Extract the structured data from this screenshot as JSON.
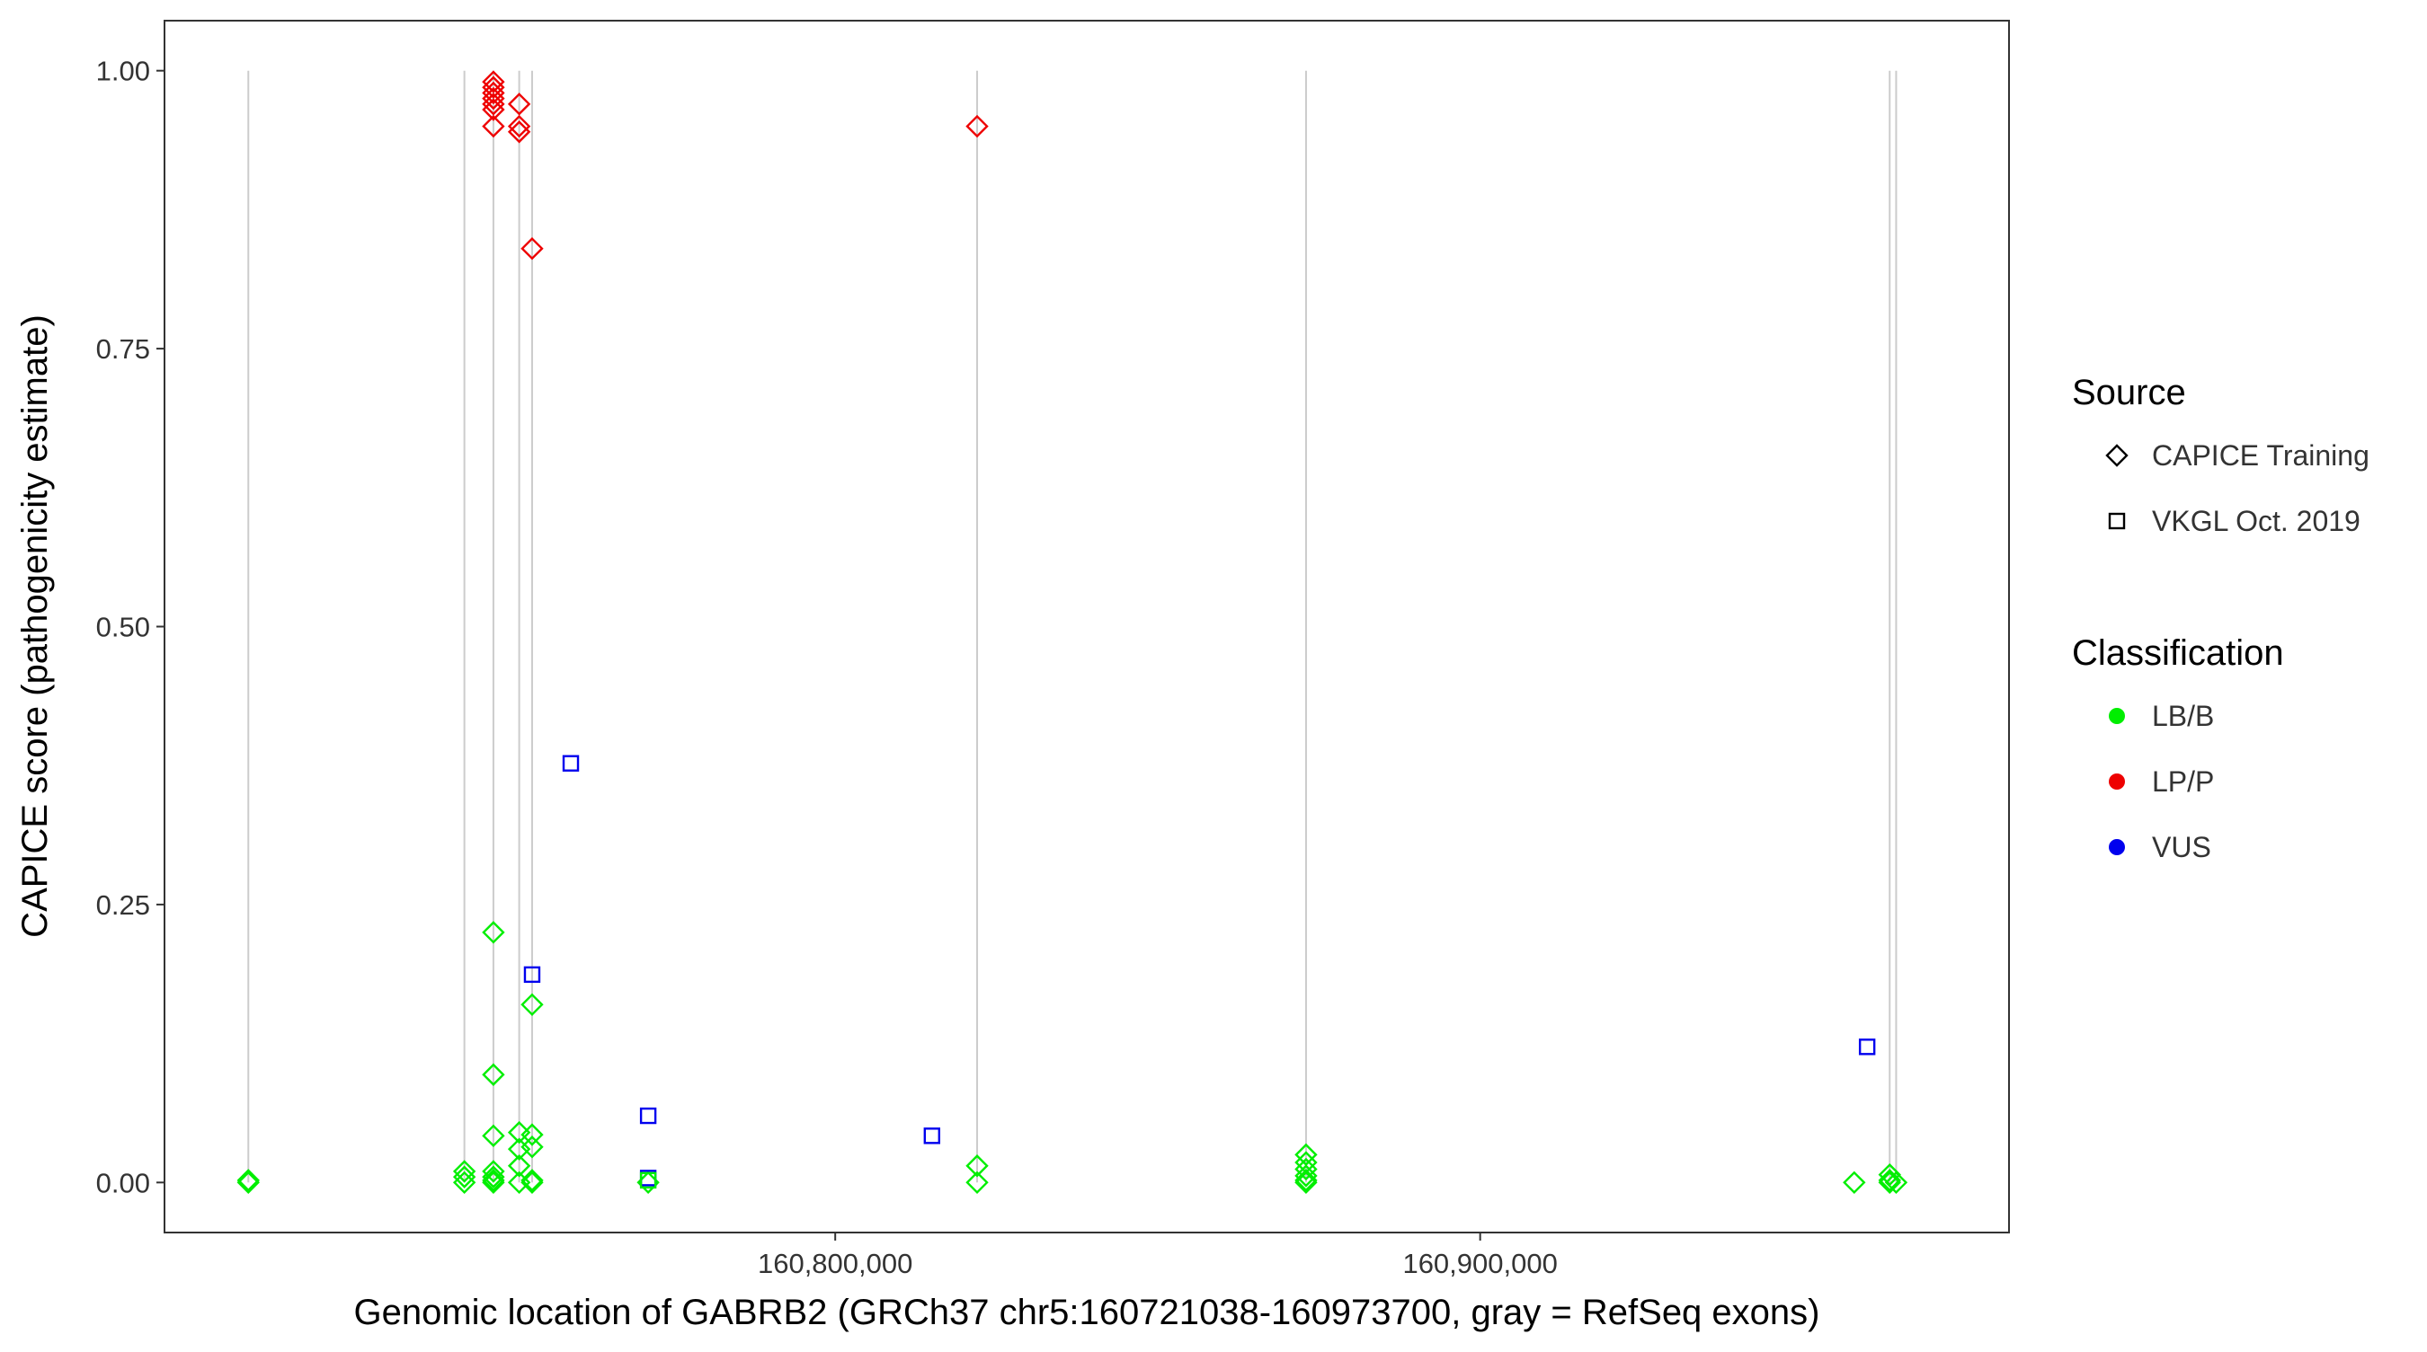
{
  "chart_data": {
    "type": "scatter",
    "xlabel": "Genomic location of GABRB2 (GRCh37 chr5:160721038-160973700, gray = RefSeq exons)",
    "ylabel": "CAPICE score (pathogenicity estimate)",
    "xlim": [
      160696000,
      160982000
    ],
    "ylim": [
      -0.045,
      1.045
    ],
    "x_ticks": [
      160800000,
      160900000
    ],
    "x_tick_labels": [
      "160,800,000",
      "160,900,000"
    ],
    "y_ticks": [
      0.0,
      0.25,
      0.5,
      0.75,
      1.0
    ],
    "y_tick_labels": [
      "0.00",
      "0.25",
      "0.50",
      "0.75",
      "1.00"
    ],
    "grid": false,
    "legend_position": "right",
    "exon_positions": [
      160709000,
      160742500,
      160747000,
      160751000,
      160753000,
      160822000,
      160873000,
      160963500,
      160964500
    ],
    "legends": {
      "source": {
        "title": "Source",
        "entries": [
          {
            "label": "CAPICE Training",
            "shape": "diamond"
          },
          {
            "label": "VKGL Oct. 2019",
            "shape": "square"
          }
        ]
      },
      "classification": {
        "title": "Classification",
        "entries": [
          {
            "label": "LB/B",
            "color": "#00ee00"
          },
          {
            "label": "LP/P",
            "color": "#ee0000"
          },
          {
            "label": "VUS",
            "color": "#0000ee"
          }
        ]
      }
    },
    "colors": {
      "LB/B": "#00ee00",
      "LP/P": "#ee0000",
      "VUS": "#0000ee",
      "exon": "#cccccc"
    },
    "series": [
      {
        "source": "CAPICE Training",
        "classification": "LP/P",
        "points": [
          [
            160747000,
            0.99
          ],
          [
            160747000,
            0.985
          ],
          [
            160747000,
            0.98
          ],
          [
            160747000,
            0.975
          ],
          [
            160747000,
            0.97
          ],
          [
            160747000,
            0.965
          ],
          [
            160747000,
            0.95
          ],
          [
            160751000,
            0.97
          ],
          [
            160751000,
            0.95
          ],
          [
            160751000,
            0.945
          ],
          [
            160753000,
            0.84
          ],
          [
            160822000,
            0.95
          ]
        ]
      },
      {
        "source": "CAPICE Training",
        "classification": "LB/B",
        "points": [
          [
            160709000,
            0.002
          ],
          [
            160709000,
            0.0
          ],
          [
            160742500,
            0.01
          ],
          [
            160742500,
            0.005
          ],
          [
            160742500,
            0.0
          ],
          [
            160747000,
            0.225
          ],
          [
            160747000,
            0.097
          ],
          [
            160747000,
            0.042
          ],
          [
            160747000,
            0.01
          ],
          [
            160747000,
            0.005
          ],
          [
            160747000,
            0.002
          ],
          [
            160747000,
            0.0
          ],
          [
            160751000,
            0.045
          ],
          [
            160751000,
            0.03
          ],
          [
            160751000,
            0.015
          ],
          [
            160751000,
            0.0
          ],
          [
            160753000,
            0.16
          ],
          [
            160753000,
            0.043
          ],
          [
            160753000,
            0.032
          ],
          [
            160753000,
            0.002
          ],
          [
            160753000,
            0.0
          ],
          [
            160771000,
            0.0
          ],
          [
            160822000,
            0.015
          ],
          [
            160822000,
            0.0
          ],
          [
            160873000,
            0.025
          ],
          [
            160873000,
            0.018
          ],
          [
            160873000,
            0.012
          ],
          [
            160873000,
            0.006
          ],
          [
            160873000,
            0.002
          ],
          [
            160873000,
            0.0
          ],
          [
            160958000,
            0.0
          ],
          [
            160963500,
            0.007
          ],
          [
            160963500,
            0.002
          ],
          [
            160963500,
            0.0
          ],
          [
            160964500,
            0.0
          ]
        ]
      },
      {
        "source": "VKGL Oct. 2019",
        "classification": "VUS",
        "points": [
          [
            160759000,
            0.377
          ],
          [
            160753000,
            0.187
          ],
          [
            160771000,
            0.06
          ],
          [
            160771000,
            0.004
          ],
          [
            160815000,
            0.042
          ],
          [
            160960000,
            0.122
          ]
        ]
      },
      {
        "source": "VKGL Oct. 2019",
        "classification": "LB/B",
        "points": [
          [
            160771000,
            0.002
          ]
        ]
      }
    ]
  }
}
